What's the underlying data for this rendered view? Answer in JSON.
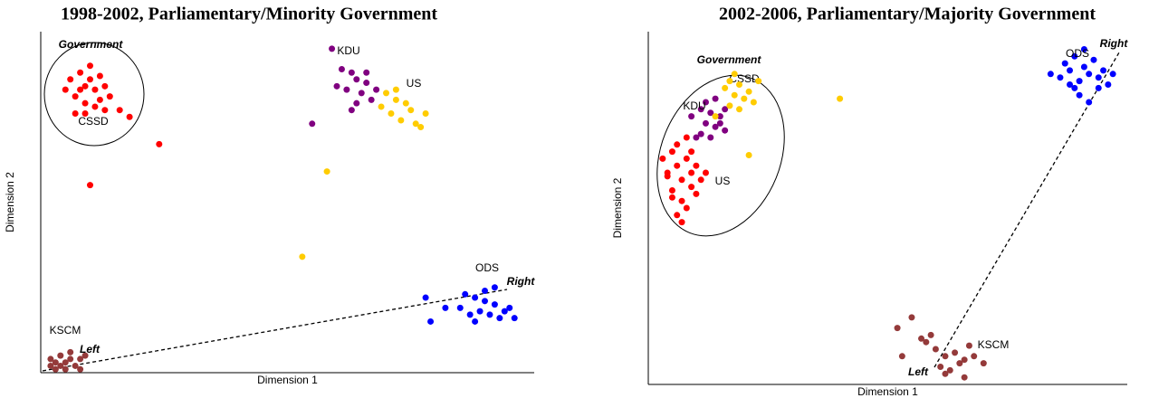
{
  "chart_data": [
    {
      "type": "scatter",
      "title": "1998-2002, Parliamentary/Minority Government",
      "xlabel": "Dimension 1",
      "ylabel": "Dimension 2",
      "xlim": [
        0,
        100
      ],
      "ylim": [
        0,
        100
      ],
      "annotations": [
        "Government",
        "Left",
        "Right"
      ],
      "series": [
        {
          "name": "CSSD",
          "color": "#ff0000",
          "x": [
            6,
            8,
            9,
            10,
            11,
            12,
            7,
            9,
            10,
            12,
            13,
            8,
            11,
            5,
            14,
            9,
            13,
            7,
            16,
            18,
            24,
            10
          ],
          "values": [
            86,
            88,
            84,
            86,
            83,
            80,
            81,
            79,
            90,
            87,
            84,
            83,
            78,
            83,
            81,
            76,
            77,
            76,
            77,
            75,
            67,
            55
          ]
        },
        {
          "name": "KDU",
          "color": "#800080",
          "x": [
            59,
            61,
            63,
            64,
            66,
            62,
            65,
            67,
            64,
            63,
            68,
            66,
            60,
            55
          ],
          "values": [
            95,
            89,
            88,
            86,
            85,
            83,
            82,
            80,
            79,
            77,
            83,
            88,
            84,
            73
          ]
        },
        {
          "name": "US",
          "color": "#ffcc00",
          "x": [
            70,
            72,
            74,
            71,
            73,
            76,
            75,
            78,
            77,
            72,
            69,
            58,
            53
          ],
          "values": [
            82,
            83,
            79,
            76,
            74,
            73,
            77,
            76,
            72,
            80,
            78,
            59,
            34
          ]
        },
        {
          "name": "ODS",
          "color": "#0000ff",
          "x": [
            86,
            88,
            90,
            92,
            94,
            89,
            91,
            93,
            87,
            95,
            90,
            92,
            85,
            88,
            96,
            78,
            82,
            79
          ],
          "values": [
            23,
            22,
            21,
            20,
            18,
            18,
            17,
            16,
            17,
            19,
            24,
            25,
            19,
            15,
            16,
            22,
            19,
            15
          ]
        },
        {
          "name": "KSCM",
          "color": "#943a3a",
          "x": [
            2,
            3,
            4,
            5,
            6,
            7,
            3,
            5,
            8,
            9,
            6,
            4,
            2,
            8
          ],
          "values": [
            4,
            3,
            5,
            3,
            4,
            2,
            1,
            1,
            4,
            5,
            6,
            2,
            2,
            1
          ]
        }
      ]
    },
    {
      "type": "scatter",
      "title": "2002-2006, Parliamentary/Majority Government",
      "xlabel": "Dimension 1",
      "ylabel": "Dimension 2",
      "xlim": [
        0,
        100
      ],
      "ylim": [
        0,
        100
      ],
      "annotations": [
        "Government",
        "Left",
        "Right"
      ],
      "series": [
        {
          "name": "CSSD",
          "color": "#ff0000",
          "x": [
            3,
            4,
            5,
            6,
            7,
            8,
            9,
            10,
            11,
            5,
            7,
            9,
            6,
            8,
            4,
            10,
            12,
            6,
            8,
            7,
            5,
            9
          ],
          "values": [
            64,
            60,
            66,
            62,
            58,
            64,
            60,
            62,
            58,
            55,
            52,
            56,
            68,
            70,
            59,
            54,
            60,
            48,
            50,
            46,
            53,
            66
          ]
        },
        {
          "name": "KDU",
          "color": "#800080",
          "x": [
            9,
            11,
            12,
            13,
            14,
            15,
            16,
            11,
            13,
            15,
            12,
            14,
            10,
            16
          ],
          "values": [
            76,
            78,
            74,
            77,
            73,
            76,
            72,
            71,
            70,
            74,
            80,
            81,
            70,
            78
          ]
        },
        {
          "name": "US",
          "color": "#ffcc00",
          "x": [
            16,
            17,
            18,
            19,
            20,
            21,
            17,
            19,
            18,
            22,
            14,
            40,
            21,
            23
          ],
          "values": [
            84,
            86,
            82,
            85,
            81,
            83,
            79,
            78,
            88,
            80,
            76,
            81,
            65,
            86
          ]
        },
        {
          "name": "ODS",
          "color": "#0000ff",
          "x": [
            84,
            86,
            88,
            90,
            92,
            94,
            96,
            89,
            91,
            93,
            87,
            95,
            90,
            92,
            88,
            94,
            97,
            89,
            91
          ],
          "values": [
            88,
            87,
            89,
            86,
            88,
            87,
            85,
            84,
            90,
            92,
            91,
            89,
            82,
            80,
            85,
            84,
            88,
            93,
            95
          ]
        },
        {
          "name": "KSCM",
          "color": "#943a3a",
          "x": [
            52,
            55,
            58,
            60,
            62,
            64,
            66,
            68,
            70,
            61,
            63,
            65,
            59,
            67,
            57,
            53,
            62,
            66
          ],
          "values": [
            16,
            19,
            12,
            10,
            8,
            9,
            7,
            8,
            6,
            5,
            4,
            6,
            14,
            11,
            13,
            8,
            3,
            2
          ]
        }
      ]
    }
  ]
}
